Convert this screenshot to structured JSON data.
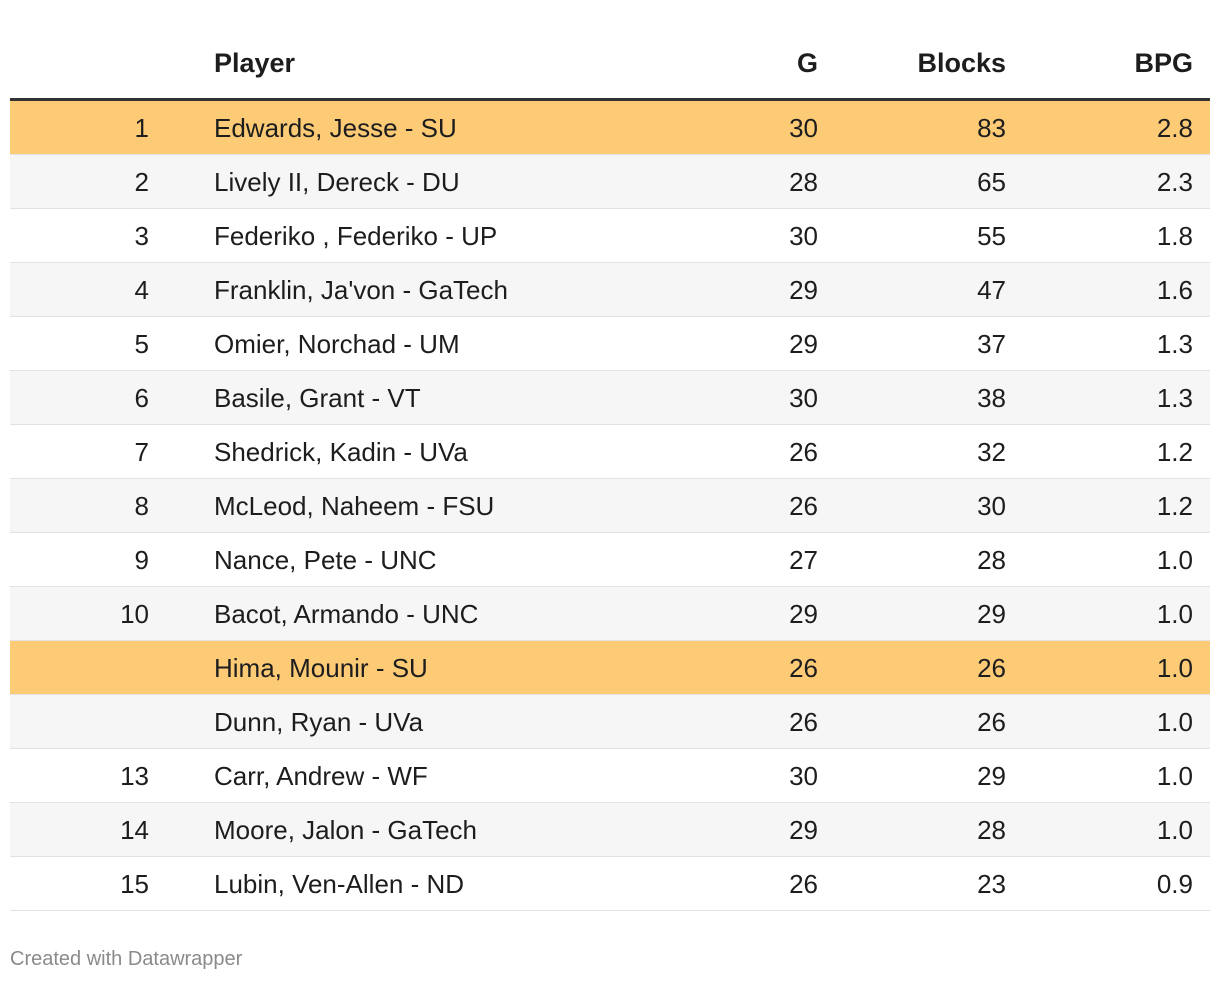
{
  "table": {
    "columns": [
      null,
      "Player",
      "G",
      "Blocks",
      "BPG"
    ],
    "rows": [
      [
        1,
        "Edwards, Jesse - SU",
        30,
        83,
        "2.8"
      ],
      [
        2,
        "Lively II, Dereck - DU",
        28,
        65,
        "2.3"
      ],
      [
        3,
        "Federiko , Federiko - UP",
        30,
        55,
        "1.8"
      ],
      [
        4,
        "Franklin, Ja'von - GaTech",
        29,
        47,
        "1.6"
      ],
      [
        5,
        "Omier, Norchad - UM",
        29,
        37,
        "1.3"
      ],
      [
        6,
        "Basile, Grant - VT",
        30,
        38,
        "1.3"
      ],
      [
        7,
        "Shedrick, Kadin - UVa",
        26,
        32,
        "1.2"
      ],
      [
        8,
        "McLeod, Naheem - FSU",
        26,
        30,
        "1.2"
      ],
      [
        9,
        "Nance, Pete - UNC",
        27,
        28,
        "1.0"
      ],
      [
        10,
        "Bacot, Armando - UNC",
        29,
        29,
        "1.0"
      ],
      [
        null,
        "Hima, Mounir - SU",
        26,
        26,
        "1.0"
      ],
      [
        null,
        "Dunn, Ryan - UVa",
        26,
        26,
        "1.0"
      ],
      [
        13,
        "Carr, Andrew - WF",
        30,
        29,
        "1.0"
      ],
      [
        14,
        "Moore, Jalon - GaTech",
        29,
        28,
        "1.0"
      ],
      [
        15,
        "Lubin, Ven-Allen - ND",
        26,
        23,
        "0.9"
      ]
    ],
    "highlighted_rows": [
      0,
      10
    ],
    "highlight_color": "#fdca76"
  },
  "footer": "Created with Datawrapper"
}
